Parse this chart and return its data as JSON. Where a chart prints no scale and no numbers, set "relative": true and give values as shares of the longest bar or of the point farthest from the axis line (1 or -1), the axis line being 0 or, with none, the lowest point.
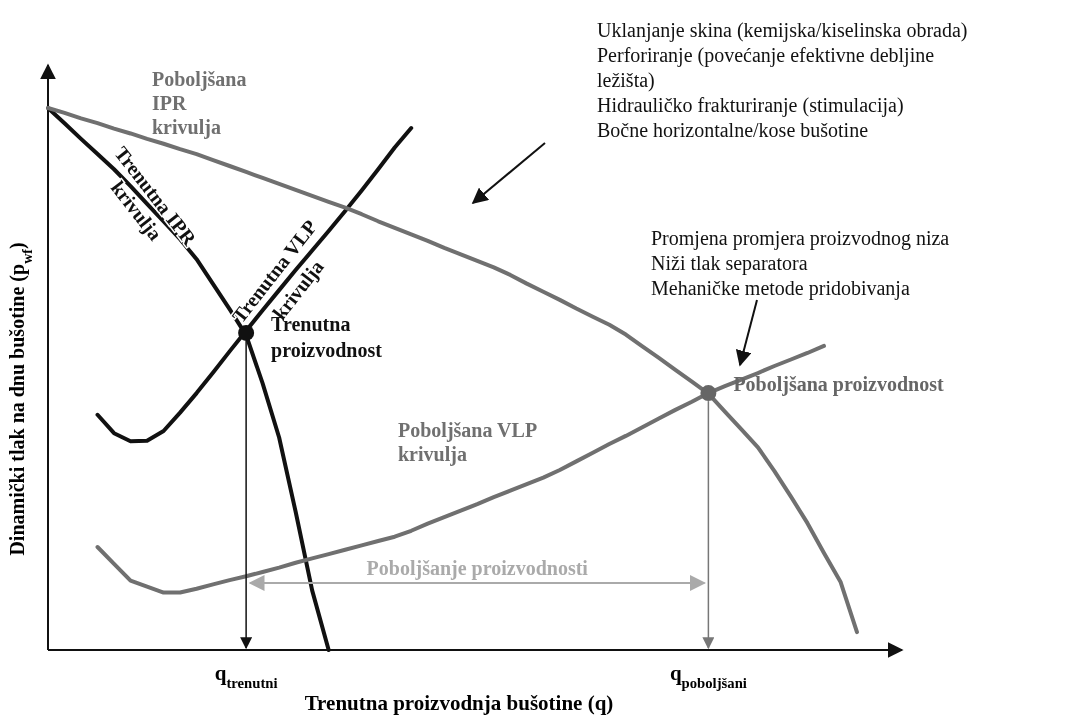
{
  "chart_data": {
    "type": "line",
    "relative": true,
    "xlabel": "Trenutna proizvodnja bušotine (q)",
    "ylabel": "Dinamički tlak na dnu bušotine (p$_{wf}$)",
    "categories": [
      null,
      null,
      null,
      null,
      null,
      null,
      null,
      null,
      null,
      null,
      null,
      null,
      "q$_{trenutni}$",
      null,
      null,
      null,
      null,
      null,
      null,
      null,
      null,
      null,
      null,
      null,
      null,
      null,
      null,
      null,
      null,
      null,
      null,
      null,
      null,
      null,
      null,
      null,
      null,
      null,
      null,
      null,
      "q$_{poboljšani}$",
      null,
      null,
      null,
      null,
      null,
      null,
      null,
      null,
      null,
      null,
      null
    ],
    "tick_labels": "x",
    "legend": false,
    "marker": "none",
    "line_style": "solid",
    "series": [
      {
        "name": "Trenutna IPR krivulja",
        "color": "#111111",
        "values": [
          1,
          0.972,
          0.943,
          0.915,
          0.887,
          0.856,
          0.823,
          0.791,
          0.758,
          0.721,
          0.675,
          0.629,
          0.581,
          0.492,
          0.392,
          0.255,
          0.11,
          0,
          null,
          null,
          null,
          null,
          null,
          null,
          null,
          null,
          null,
          null,
          null,
          null,
          null,
          null,
          null,
          null,
          null,
          null,
          null,
          null,
          null,
          null,
          null,
          null,
          null,
          null,
          null,
          null,
          null,
          null,
          null,
          null,
          null,
          null
        ]
      },
      {
        "name": "Trenutna VLP krivulja",
        "color": "#111111",
        "values": [
          null,
          null,
          null,
          0.434,
          0.4,
          0.385,
          0.386,
          0.404,
          0.438,
          0.474,
          0.512,
          0.551,
          0.589,
          0.627,
          0.664,
          0.701,
          0.737,
          0.773,
          0.81,
          0.848,
          0.887,
          0.927,
          0.963,
          null,
          null,
          null,
          null,
          null,
          null,
          null,
          null,
          null,
          null,
          null,
          null,
          null,
          null,
          null,
          null,
          null,
          null,
          null,
          null,
          null,
          null,
          null,
          null,
          null,
          null,
          null,
          null,
          null
        ]
      },
      {
        "name": "Poboljšana IPR krivulja",
        "color": "#707070",
        "values": [
          1,
          0.991,
          0.981,
          0.972,
          0.962,
          0.953,
          0.943,
          0.934,
          0.924,
          0.915,
          0.904,
          0.893,
          0.882,
          0.871,
          0.86,
          0.849,
          0.838,
          0.827,
          0.816,
          0.804,
          0.791,
          0.779,
          0.767,
          0.755,
          0.742,
          0.73,
          0.718,
          0.706,
          0.692,
          0.676,
          0.661,
          0.646,
          0.63,
          0.615,
          0.6,
          0.582,
          0.56,
          0.539,
          0.517,
          0.495,
          0.473,
          0.44,
          0.407,
          0.374,
          0.33,
          0.283,
          0.234,
          0.179,
          0.126,
          0.033,
          null,
          null
        ]
      },
      {
        "name": "Poboljšana VLP krivulja",
        "color": "#707070",
        "values": [
          null,
          null,
          null,
          0.19,
          0.159,
          0.128,
          0.117,
          0.106,
          0.106,
          0.113,
          0.121,
          0.129,
          0.136,
          0.144,
          0.152,
          0.161,
          0.169,
          0.177,
          0.185,
          0.193,
          0.201,
          0.209,
          0.22,
          0.233,
          0.245,
          0.257,
          0.269,
          0.282,
          0.294,
          0.306,
          0.318,
          0.332,
          0.348,
          0.364,
          0.38,
          0.395,
          0.411,
          0.427,
          0.443,
          0.458,
          0.474,
          0.487,
          0.499,
          0.511,
          0.524,
          0.536,
          0.548,
          0.561,
          null,
          null,
          null,
          null
        ]
      },
      {
        "type": "scatter",
        "marker": "circle",
        "color": "#111111",
        "values": [
          null,
          null,
          null,
          null,
          null,
          null,
          null,
          null,
          null,
          null,
          null,
          null,
          0.585,
          null,
          null,
          null,
          null,
          null,
          null,
          null,
          null,
          null,
          null,
          null,
          null,
          null,
          null,
          null,
          null,
          null,
          null,
          null,
          null,
          null,
          null,
          null,
          null,
          null,
          null,
          null,
          null,
          null,
          null,
          null,
          null,
          null,
          null,
          null,
          null,
          null,
          null,
          null
        ]
      },
      {
        "type": "scatter",
        "marker": "circle",
        "color": "#666666",
        "values": [
          null,
          null,
          null,
          null,
          null,
          null,
          null,
          null,
          null,
          null,
          null,
          null,
          null,
          null,
          null,
          null,
          null,
          null,
          null,
          null,
          null,
          null,
          null,
          null,
          null,
          null,
          null,
          null,
          null,
          null,
          null,
          null,
          null,
          null,
          null,
          null,
          null,
          null,
          null,
          null,
          0.474,
          null,
          null,
          null,
          null,
          null,
          null,
          null,
          null,
          null,
          null,
          null
        ]
      }
    ],
    "annotations": [
      "Uklanjanje skina (kemijska/kiselinska obrada)\nPerforiranje (povećanje efektivne debljine\nležišta)\nHidrauličko frakturiranje (stimulacija)\nBočne horizontalne/kose bušotine",
      "Promjena promjera proizvodnog niza\nNiži tlak separatora\nMehaničke metode pridobivanja",
      {
        "text": "Trenutna\nproizvodnost",
        "x": "q$_{trenutni}$",
        "y": 0.585
      },
      {
        "text": "Poboljšana proizvodnost",
        "x": "q$_{poboljšani}$",
        "y": 0.474
      },
      "Poboljšanje proizvodnosti"
    ]
  }
}
